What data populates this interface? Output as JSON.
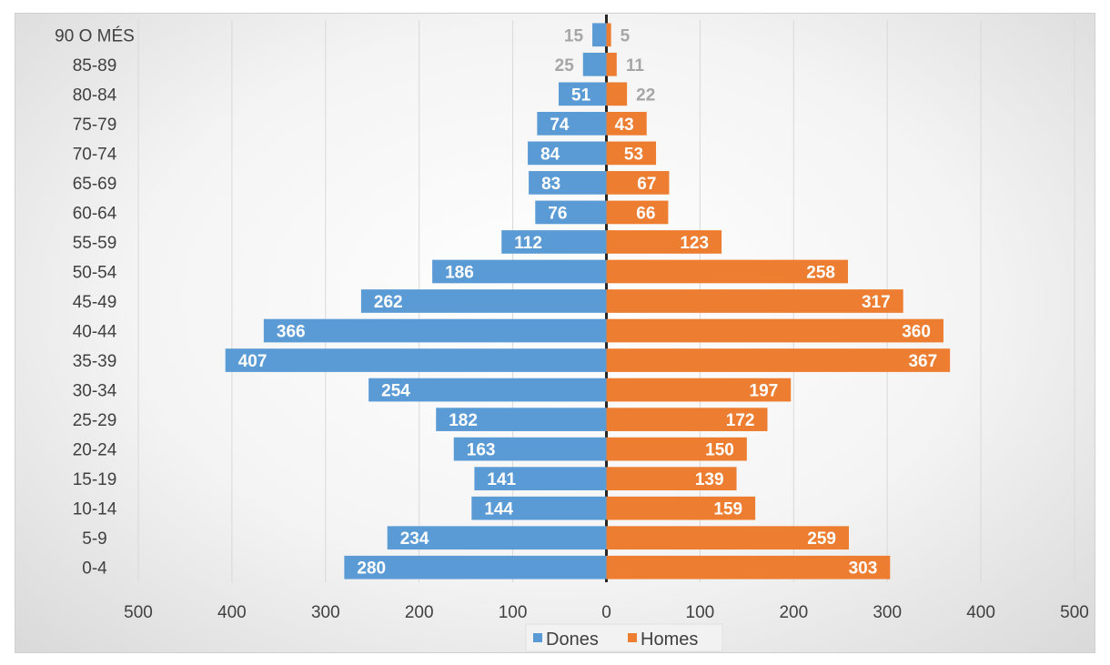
{
  "chart_data": {
    "type": "bar",
    "orientation": "horizontal",
    "categories": [
      "0-4",
      "5-9",
      "10-14",
      "15-19",
      "20-24",
      "25-29",
      "30-34",
      "35-39",
      "40-44",
      "45-49",
      "50-54",
      "55-59",
      "60-64",
      "65-69",
      "70-74",
      "75-79",
      "80-84",
      "85-89",
      "90 O MÉS"
    ],
    "series": [
      {
        "name": "Dones",
        "color": "#5b9bd5",
        "direction": "left",
        "values": [
          280,
          234,
          144,
          141,
          163,
          182,
          254,
          407,
          366,
          262,
          186,
          112,
          76,
          83,
          84,
          74,
          51,
          25,
          15
        ]
      },
      {
        "name": "Homes",
        "color": "#ed7d31",
        "direction": "right",
        "values": [
          303,
          259,
          159,
          139,
          150,
          172,
          197,
          367,
          360,
          317,
          258,
          123,
          66,
          67,
          53,
          43,
          22,
          11,
          5
        ]
      }
    ],
    "xlim": [
      -500,
      500
    ],
    "x_ticks": [
      -500,
      -400,
      -300,
      -200,
      -100,
      0,
      100,
      200,
      300,
      400,
      500
    ],
    "x_tick_labels": [
      "500",
      "400",
      "300",
      "200",
      "100",
      "0",
      "100",
      "200",
      "300",
      "400",
      "500"
    ],
    "grid": "vertical",
    "legend_position": "bottom",
    "data_labels": true
  }
}
